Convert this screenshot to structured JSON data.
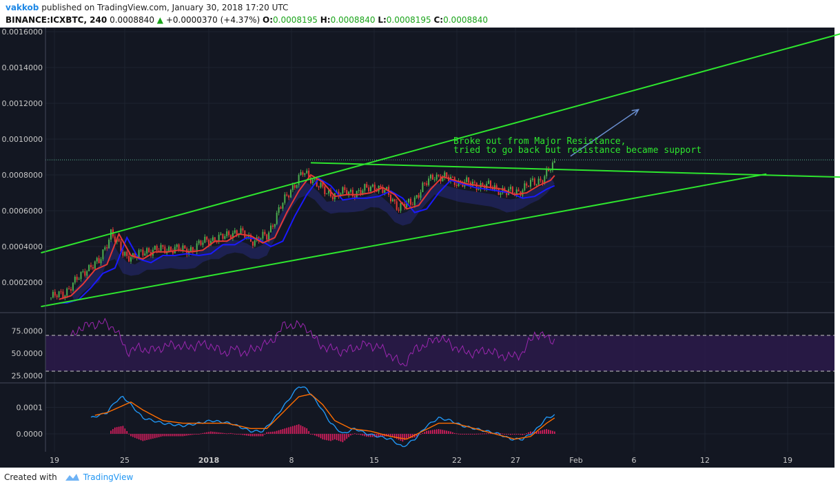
{
  "header": {
    "author": "vakkob",
    "published": "published on TradingView.com, January 30, 2018 17:20 UTC",
    "symbol": "BINANCE:ICXBTC, 240",
    "last": "0.0008840",
    "change_arrow": "▲",
    "change": "+0.0000370 (+4.37%)",
    "o_label": "O:",
    "o_value": "0.0008195",
    "h_label": "H:",
    "h_value": "0.0008840",
    "l_label": "L:",
    "l_value": "0.0008195",
    "c_label": "C:",
    "c_value": "0.0008840"
  },
  "annotation": {
    "line1": "Broke out from Major Resistance,",
    "line2": "tried to go back but resistance became support"
  },
  "footer": {
    "created_with": "Created with",
    "brand": "TradingView"
  },
  "colors": {
    "background": "#131722",
    "trend_line": "#2ee62e",
    "candle_up": "#4caf50",
    "candle_down": "#e53935",
    "ema_fast": "#e53935",
    "ema_slow": "#1a1aff",
    "rsi_line": "#9c27b0",
    "macd": "#2196f3",
    "signal": "#ff6d00",
    "histogram": "#e91e63",
    "annotation_text": "#2ee62e",
    "arrow": "#6a8fd0"
  },
  "chart_data": [
    {
      "type": "candlestick",
      "x_ticks": [
        "19",
        "25",
        "2018",
        "8",
        "15",
        "22",
        "27",
        "Feb",
        "6",
        "12",
        "19"
      ],
      "y_ticks": [
        "0.0002000",
        "0.0004000",
        "0.0006000",
        "0.0008000",
        "0.0010000",
        "0.0012000",
        "0.0014000",
        "0.0016000"
      ],
      "ylim": [
        5e-05,
        0.0016
      ],
      "resistance_level": 0.000884,
      "close_path": [
        [
          0,
          0.000115
        ],
        [
          6,
          0.000135
        ],
        [
          12,
          0.0002
        ],
        [
          18,
          0.00028
        ],
        [
          24,
          0.00031
        ],
        [
          30,
          0.00048
        ],
        [
          36,
          0.00036
        ],
        [
          42,
          0.00034
        ],
        [
          48,
          0.00038
        ],
        [
          54,
          0.00038
        ],
        [
          60,
          0.00039
        ],
        [
          66,
          0.00038
        ],
        [
          72,
          0.00039
        ],
        [
          78,
          0.00044
        ],
        [
          84,
          0.00044
        ],
        [
          90,
          0.00048
        ],
        [
          96,
          0.00047
        ],
        [
          102,
          0.00043
        ],
        [
          108,
          0.00046
        ],
        [
          114,
          0.0006
        ],
        [
          120,
          0.00072
        ],
        [
          126,
          0.00081
        ],
        [
          132,
          0.00077
        ],
        [
          138,
          0.00069
        ],
        [
          144,
          0.0007
        ],
        [
          150,
          0.0007
        ],
        [
          156,
          0.00071
        ],
        [
          162,
          0.00074
        ],
        [
          168,
          0.0007
        ],
        [
          174,
          0.00062
        ],
        [
          180,
          0.00064
        ],
        [
          186,
          0.00073
        ],
        [
          192,
          0.0008
        ],
        [
          198,
          0.00078
        ],
        [
          204,
          0.00076
        ],
        [
          210,
          0.00075
        ],
        [
          216,
          0.00074
        ],
        [
          222,
          0.00073
        ],
        [
          228,
          0.0007
        ],
        [
          234,
          0.00071
        ],
        [
          240,
          0.00075
        ],
        [
          246,
          0.00078
        ],
        [
          252,
          0.00086
        ]
      ],
      "lines": [
        {
          "name": "upper channel",
          "points": [
            [
              -5,
              0.000365
            ],
            [
              400,
              0.001603
            ]
          ]
        },
        {
          "name": "lower channel",
          "points": [
            [
              -5,
              6.5e-05
            ],
            [
              358,
              0.000805
            ]
          ]
        },
        {
          "name": "resistance",
          "points": [
            [
              130,
              0.000868
            ],
            [
              404,
              0.000785
            ]
          ]
        }
      ],
      "arrow": {
        "from": [
          260,
          0.000905
        ],
        "to": [
          294,
          0.001165
        ]
      }
    },
    {
      "type": "line",
      "name": "RSI",
      "y_ticks": [
        "25.0000",
        "50.0000",
        "75.0000"
      ],
      "ylim": [
        15,
        85
      ],
      "band": [
        30,
        70
      ],
      "values_path": [
        [
          0,
          55
        ],
        [
          8,
          62
        ],
        [
          14,
          78
        ],
        [
          20,
          82
        ],
        [
          26,
          84
        ],
        [
          32,
          78
        ],
        [
          38,
          52
        ],
        [
          44,
          56
        ],
        [
          50,
          53
        ],
        [
          56,
          57
        ],
        [
          62,
          60
        ],
        [
          68,
          56
        ],
        [
          74,
          60
        ],
        [
          80,
          59
        ],
        [
          86,
          50
        ],
        [
          92,
          55
        ],
        [
          98,
          50
        ],
        [
          104,
          58
        ],
        [
          110,
          62
        ],
        [
          116,
          80
        ],
        [
          122,
          82
        ],
        [
          128,
          79
        ],
        [
          134,
          60
        ],
        [
          140,
          55
        ],
        [
          146,
          52
        ],
        [
          152,
          56
        ],
        [
          158,
          60
        ],
        [
          164,
          57
        ],
        [
          170,
          48
        ],
        [
          176,
          36
        ],
        [
          182,
          54
        ],
        [
          188,
          60
        ],
        [
          194,
          68
        ],
        [
          200,
          60
        ],
        [
          206,
          52
        ],
        [
          212,
          50
        ],
        [
          218,
          54
        ],
        [
          224,
          48
        ],
        [
          230,
          46
        ],
        [
          236,
          50
        ],
        [
          242,
          72
        ],
        [
          248,
          68
        ],
        [
          252,
          64
        ]
      ]
    },
    {
      "type": "line",
      "name": "MACD",
      "y_ticks": [
        "0.0001",
        "0.0000"
      ],
      "ylim": [
        -6e-05,
        0.000185
      ],
      "series": [
        {
          "name": "MACD",
          "values_path": [
            [
              20,
              6e-05
            ],
            [
              24,
              7e-05
            ],
            [
              28,
              8e-05
            ],
            [
              32,
              0.00012
            ],
            [
              36,
              0.00014
            ],
            [
              40,
              0.00011
            ],
            [
              46,
              6e-05
            ],
            [
              56,
              4e-05
            ],
            [
              66,
              3e-05
            ],
            [
              74,
              4e-05
            ],
            [
              80,
              5e-05
            ],
            [
              90,
              4e-05
            ],
            [
              100,
              1e-05
            ],
            [
              106,
              1e-05
            ],
            [
              112,
              6e-05
            ],
            [
              118,
              0.00012
            ],
            [
              124,
              0.00018
            ],
            [
              128,
              0.00017
            ],
            [
              134,
              0.00011
            ],
            [
              140,
              4e-05
            ],
            [
              146,
              0.0
            ],
            [
              152,
              2e-05
            ],
            [
              158,
              0.0
            ],
            [
              164,
              -1e-05
            ],
            [
              170,
              -2e-05
            ],
            [
              176,
              -5e-05
            ],
            [
              182,
              -2e-05
            ],
            [
              188,
              3e-05
            ],
            [
              194,
              6e-05
            ],
            [
              200,
              5e-05
            ],
            [
              206,
              3e-05
            ],
            [
              212,
              2e-05
            ],
            [
              218,
              1e-05
            ],
            [
              224,
              0.0
            ],
            [
              230,
              -2e-05
            ],
            [
              236,
              -2e-05
            ],
            [
              242,
              1e-05
            ],
            [
              248,
              6e-05
            ],
            [
              252,
              7e-05
            ]
          ]
        },
        {
          "name": "Signal",
          "values_path": [
            [
              22,
              7e-05
            ],
            [
              28,
              8e-05
            ],
            [
              34,
              0.0001
            ],
            [
              40,
              0.00012
            ],
            [
              46,
              9e-05
            ],
            [
              56,
              5e-05
            ],
            [
              66,
              4e-05
            ],
            [
              76,
              4e-05
            ],
            [
              88,
              4e-05
            ],
            [
              100,
              2e-05
            ],
            [
              108,
              2e-05
            ],
            [
              116,
              8e-05
            ],
            [
              124,
              0.00014
            ],
            [
              130,
              0.00015
            ],
            [
              136,
              0.00011
            ],
            [
              142,
              5e-05
            ],
            [
              150,
              2e-05
            ],
            [
              160,
              1e-05
            ],
            [
              170,
              -1e-05
            ],
            [
              178,
              -2e-05
            ],
            [
              186,
              1e-05
            ],
            [
              194,
              4e-05
            ],
            [
              202,
              4e-05
            ],
            [
              212,
              2e-05
            ],
            [
              222,
              0.0
            ],
            [
              232,
              -2e-05
            ],
            [
              240,
              -1e-05
            ],
            [
              248,
              4e-05
            ],
            [
              252,
              6e-05
            ]
          ]
        }
      ]
    }
  ]
}
